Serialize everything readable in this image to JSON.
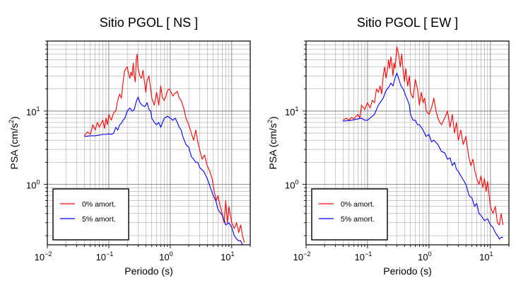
{
  "chart_data": [
    {
      "type": "line",
      "title": "Sitio PGOL [ NS ]",
      "xlabel": "Periodo (s)",
      "ylabel_main": "PSA (cm/s",
      "ylabel_exp": "2",
      "ylabel_end": ")",
      "x_scale": "log",
      "y_scale": "log",
      "xlim": [
        0.01,
        20
      ],
      "ylim": [
        0.15,
        90
      ],
      "grid": true,
      "legend_position": "bottom-left",
      "x_tick_labels": [
        {
          "base": "10",
          "exp": "−2"
        },
        {
          "base": "10",
          "exp": "−1"
        },
        {
          "base": "10",
          "exp": "0"
        },
        {
          "base": "10",
          "exp": "1"
        }
      ],
      "y_tick_labels": [
        {
          "base": "10",
          "exp": "0"
        },
        {
          "base": "10",
          "exp": "1"
        }
      ],
      "series": [
        {
          "name": "0% amort.",
          "color": "#ff0000",
          "x": [
            0.04,
            0.045,
            0.05,
            0.055,
            0.06,
            0.065,
            0.07,
            0.075,
            0.08,
            0.085,
            0.09,
            0.095,
            0.1,
            0.11,
            0.12,
            0.13,
            0.14,
            0.15,
            0.16,
            0.17,
            0.18,
            0.19,
            0.2,
            0.21,
            0.22,
            0.23,
            0.24,
            0.25,
            0.26,
            0.27,
            0.28,
            0.29,
            0.3,
            0.32,
            0.34,
            0.36,
            0.38,
            0.4,
            0.42,
            0.45,
            0.48,
            0.5,
            0.55,
            0.6,
            0.65,
            0.7,
            0.75,
            0.8,
            0.85,
            0.9,
            0.95,
            1.0,
            1.1,
            1.2,
            1.3,
            1.4,
            1.5,
            1.6,
            1.7,
            1.8,
            2.0,
            2.2,
            2.4,
            2.6,
            2.8,
            3.0,
            3.3,
            3.6,
            4.0,
            4.4,
            4.8,
            5.2,
            5.6,
            6.0,
            6.5,
            7.0,
            7.5,
            8.0,
            8.5,
            9.0,
            10.0,
            11.0,
            12.0,
            13.0,
            14.0,
            15.0,
            16.0
          ],
          "y": [
            4.6,
            5.2,
            4.8,
            6.5,
            5.5,
            7.0,
            6.0,
            6.8,
            7.5,
            5.8,
            8.0,
            6.5,
            9.0,
            7.5,
            9.5,
            10.0,
            14.0,
            17.0,
            15.0,
            24.0,
            35.0,
            38.0,
            40.0,
            32.0,
            28.0,
            34.0,
            30.0,
            45.0,
            30.0,
            25.0,
            52.0,
            60.0,
            38.0,
            30.0,
            28.0,
            36.0,
            25.0,
            18.0,
            26.0,
            30.0,
            20.0,
            15.0,
            12.0,
            18.0,
            12.0,
            22.0,
            15.0,
            14.0,
            16.0,
            19.0,
            20.0,
            19.0,
            16.0,
            17.5,
            18.5,
            15.0,
            14.0,
            12.0,
            10.0,
            8.0,
            6.5,
            5.0,
            4.0,
            5.5,
            3.8,
            3.0,
            2.2,
            2.5,
            1.8,
            1.5,
            1.2,
            0.8,
            0.6,
            0.7,
            0.5,
            0.4,
            0.3,
            0.6,
            0.3,
            0.5,
            0.3,
            0.25,
            0.3,
            0.22,
            0.28,
            0.2,
            0.16
          ]
        },
        {
          "name": "5% amort.",
          "color": "#0000ff",
          "x": [
            0.04,
            0.05,
            0.06,
            0.07,
            0.08,
            0.09,
            0.1,
            0.11,
            0.12,
            0.13,
            0.14,
            0.15,
            0.16,
            0.17,
            0.18,
            0.19,
            0.2,
            0.22,
            0.24,
            0.26,
            0.28,
            0.3,
            0.32,
            0.35,
            0.38,
            0.4,
            0.42,
            0.45,
            0.48,
            0.5,
            0.55,
            0.6,
            0.65,
            0.7,
            0.75,
            0.8,
            0.9,
            1.0,
            1.1,
            1.2,
            1.3,
            1.4,
            1.5,
            1.6,
            1.8,
            2.0,
            2.2,
            2.4,
            2.6,
            2.8,
            3.0,
            3.5,
            4.0,
            4.5,
            5.0,
            5.5,
            6.0,
            7.0,
            8.0,
            9.0,
            10.0,
            11.0,
            12.0,
            13.0,
            14.0,
            15.0,
            16.0
          ],
          "y": [
            4.5,
            4.6,
            4.6,
            4.7,
            4.8,
            4.8,
            4.9,
            4.8,
            5.0,
            6.0,
            5.5,
            6.5,
            6.8,
            7.5,
            7.8,
            8.8,
            10.0,
            11.0,
            10.0,
            10.5,
            13.5,
            15.5,
            13.0,
            12.0,
            11.5,
            12.0,
            13.0,
            10.5,
            10.0,
            8.0,
            7.0,
            6.5,
            7.0,
            6.0,
            7.0,
            8.0,
            8.5,
            8.0,
            7.5,
            8.0,
            7.0,
            6.0,
            5.5,
            4.5,
            3.5,
            3.2,
            2.4,
            2.2,
            2.0,
            2.0,
            1.7,
            1.5,
            1.2,
            0.9,
            0.7,
            0.6,
            0.45,
            0.38,
            0.28,
            0.3,
            0.26,
            0.2,
            0.18,
            0.17,
            0.17,
            0.15,
            0.15
          ]
        }
      ]
    },
    {
      "type": "line",
      "title": "Sitio PGOL [ EW ]",
      "xlabel": "Periodo (s)",
      "ylabel_main": "PSA (cm/s",
      "ylabel_exp": "2",
      "ylabel_end": ")",
      "x_scale": "log",
      "y_scale": "log",
      "xlim": [
        0.01,
        20
      ],
      "ylim": [
        0.15,
        90
      ],
      "grid": true,
      "legend_position": "bottom-left",
      "x_tick_labels": [
        {
          "base": "10",
          "exp": "−2"
        },
        {
          "base": "10",
          "exp": "−1"
        },
        {
          "base": "10",
          "exp": "0"
        },
        {
          "base": "10",
          "exp": "1"
        }
      ],
      "y_tick_labels": [
        {
          "base": "10",
          "exp": "0"
        },
        {
          "base": "10",
          "exp": "1"
        }
      ],
      "series": [
        {
          "name": "0% amort.",
          "color": "#ff0000",
          "x": [
            0.04,
            0.045,
            0.05,
            0.055,
            0.06,
            0.065,
            0.07,
            0.075,
            0.08,
            0.09,
            0.1,
            0.11,
            0.12,
            0.13,
            0.14,
            0.15,
            0.16,
            0.17,
            0.18,
            0.19,
            0.2,
            0.21,
            0.22,
            0.23,
            0.24,
            0.25,
            0.26,
            0.27,
            0.28,
            0.3,
            0.32,
            0.34,
            0.36,
            0.38,
            0.4,
            0.42,
            0.45,
            0.48,
            0.5,
            0.55,
            0.6,
            0.65,
            0.7,
            0.75,
            0.8,
            0.85,
            0.9,
            1.0,
            1.1,
            1.2,
            1.3,
            1.4,
            1.5,
            1.6,
            1.8,
            2.0,
            2.2,
            2.4,
            2.6,
            2.8,
            3.0,
            3.3,
            3.6,
            4.0,
            4.4,
            4.8,
            5.2,
            5.6,
            6.0,
            6.5,
            7.0,
            7.5,
            8.0,
            8.5,
            9.0,
            10.0,
            11.0,
            12.0,
            13.0,
            14.0,
            15.0,
            16.0
          ],
          "y": [
            7.5,
            8.0,
            7.5,
            8.2,
            7.8,
            8.5,
            9.0,
            8.0,
            12.0,
            10.5,
            13.0,
            11.0,
            14.0,
            13.0,
            20.0,
            18.0,
            22.0,
            17.0,
            30.0,
            40.0,
            28.0,
            35.0,
            50.0,
            38.0,
            55.0,
            42.0,
            30.0,
            45.0,
            38.0,
            75.0,
            60.0,
            40.0,
            60.0,
            35.0,
            25.0,
            38.0,
            22.0,
            30.0,
            18.0,
            15.0,
            27.0,
            20.0,
            12.0,
            18.0,
            13.0,
            15.0,
            10.0,
            9.0,
            11.0,
            15.0,
            10.0,
            8.0,
            7.0,
            6.5,
            8.0,
            10.0,
            6.0,
            9.0,
            5.0,
            7.0,
            4.0,
            5.5,
            3.5,
            4.5,
            2.5,
            1.8,
            2.2,
            1.5,
            1.2,
            1.0,
            1.3,
            0.9,
            1.2,
            0.8,
            1.1,
            0.5,
            0.4,
            0.5,
            0.3,
            0.28,
            0.4,
            0.28
          ]
        },
        {
          "name": "5% amort.",
          "color": "#0000ff",
          "x": [
            0.04,
            0.05,
            0.06,
            0.07,
            0.08,
            0.09,
            0.1,
            0.11,
            0.12,
            0.13,
            0.14,
            0.15,
            0.16,
            0.17,
            0.18,
            0.19,
            0.2,
            0.22,
            0.24,
            0.26,
            0.28,
            0.3,
            0.32,
            0.35,
            0.38,
            0.4,
            0.42,
            0.45,
            0.48,
            0.5,
            0.55,
            0.6,
            0.65,
            0.7,
            0.8,
            0.9,
            1.0,
            1.1,
            1.2,
            1.4,
            1.6,
            1.8,
            2.0,
            2.2,
            2.4,
            2.6,
            2.8,
            3.0,
            3.5,
            4.0,
            4.5,
            5.0,
            5.5,
            6.0,
            6.5,
            7.0,
            8.0,
            9.0,
            10.0,
            11.0,
            12.0,
            13.0,
            14.0,
            15.0,
            16.0
          ],
          "y": [
            7.3,
            7.4,
            7.6,
            7.8,
            8.0,
            7.5,
            7.5,
            8.0,
            8.5,
            9.0,
            10.5,
            12.0,
            13.0,
            14.0,
            15.0,
            17.0,
            19.0,
            21.0,
            24.0,
            22.0,
            28.0,
            33.0,
            28.0,
            22.0,
            20.0,
            18.0,
            16.0,
            14.0,
            12.0,
            9.0,
            7.5,
            7.5,
            6.5,
            6.5,
            5.5,
            4.5,
            4.8,
            3.8,
            4.0,
            3.5,
            2.8,
            2.7,
            2.2,
            2.3,
            1.8,
            2.0,
            1.6,
            1.5,
            1.2,
            1.0,
            0.7,
            0.65,
            0.5,
            0.55,
            0.4,
            0.38,
            0.32,
            0.34,
            0.28,
            0.26,
            0.22,
            0.2,
            0.18,
            0.19,
            0.19
          ]
        }
      ]
    }
  ]
}
